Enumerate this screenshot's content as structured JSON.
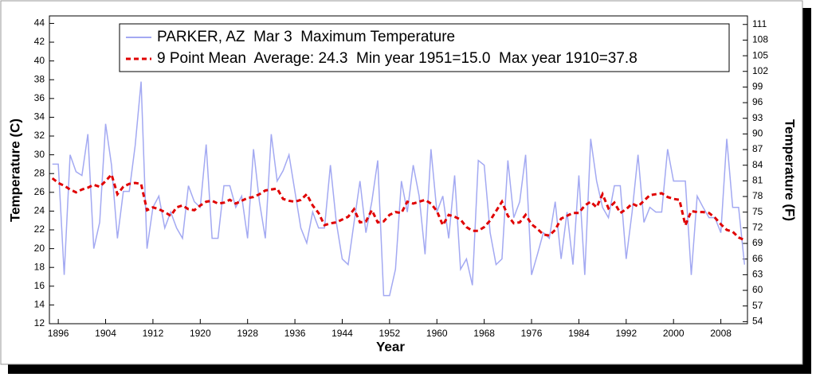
{
  "chart_data": {
    "type": "line",
    "legend": [
      "PARKER, AZ  Mar 3  Maximum Temperature",
      "9 Point Mean  Average: 24.3  Min year 1951=15.0  Max year 1910=37.8"
    ],
    "xlabel": "Year",
    "ylabel": "Temperature (C)",
    "y2label": "Temperature (F)",
    "xlim": [
      1894.5,
      2012.5
    ],
    "xticks": [
      1896,
      1904,
      1912,
      1920,
      1928,
      1936,
      1944,
      1952,
      1960,
      1968,
      1976,
      1984,
      1992,
      2000,
      2008
    ],
    "ylim": [
      12,
      44.8
    ],
    "yticks": [
      12,
      14,
      16,
      18,
      20,
      22,
      24,
      26,
      28,
      30,
      32,
      34,
      36,
      38,
      40,
      42,
      44
    ],
    "y2lim": [
      53.6,
      112.64
    ],
    "y2ticks": [
      54,
      57,
      60,
      63,
      66,
      69,
      72,
      75,
      78,
      81,
      84,
      87,
      90,
      93,
      96,
      99,
      102,
      105,
      108,
      111
    ],
    "x": [
      1895,
      1896,
      1897,
      1898,
      1899,
      1900,
      1901,
      1902,
      1903,
      1904,
      1905,
      1906,
      1907,
      1908,
      1909,
      1910,
      1911,
      1912,
      1913,
      1914,
      1915,
      1916,
      1917,
      1918,
      1919,
      1920,
      1921,
      1922,
      1923,
      1924,
      1925,
      1926,
      1927,
      1928,
      1929,
      1930,
      1931,
      1932,
      1933,
      1934,
      1935,
      1936,
      1937,
      1938,
      1939,
      1940,
      1941,
      1942,
      1943,
      1944,
      1945,
      1946,
      1947,
      1948,
      1949,
      1950,
      1951,
      1952,
      1953,
      1954,
      1955,
      1956,
      1957,
      1958,
      1959,
      1960,
      1961,
      1962,
      1963,
      1964,
      1965,
      1966,
      1967,
      1968,
      1969,
      1970,
      1971,
      1972,
      1973,
      1974,
      1975,
      1976,
      1977,
      1978,
      1979,
      1980,
      1981,
      1982,
      1983,
      1984,
      1985,
      1986,
      1987,
      1988,
      1989,
      1990,
      1991,
      1992,
      1993,
      1994,
      1995,
      1996,
      1997,
      1998,
      1999,
      2000,
      2001,
      2002,
      2003,
      2004,
      2005,
      2006,
      2007,
      2008,
      2009,
      2010,
      2011,
      2012
    ],
    "series": [
      {
        "name": "PARKER, AZ  Mar 3  Maximum Temperature",
        "color": "#a3a9f2",
        "dashed": false,
        "values": [
          29,
          29,
          17.2,
          30,
          28.2,
          27.8,
          32.2,
          20,
          22.8,
          33.3,
          28.9,
          21.1,
          26.1,
          26.1,
          31,
          37.8,
          20,
          24.4,
          25.6,
          22.2,
          23.9,
          22.2,
          21.1,
          26.7,
          25,
          24.4,
          31.1,
          21.1,
          21.1,
          26.7,
          26.7,
          24.4,
          25.6,
          21.1,
          30.6,
          25,
          21.1,
          32.2,
          27.2,
          28.3,
          30,
          26.1,
          22.2,
          20.6,
          23.9,
          22.2,
          22.2,
          28.9,
          22.8,
          18.9,
          18.3,
          22.8,
          27.2,
          21.7,
          25,
          29.4,
          15,
          15,
          17.8,
          27.2,
          23.9,
          28.9,
          25.6,
          19.4,
          30.6,
          23.9,
          25.6,
          21.1,
          27.8,
          17.8,
          18.9,
          16.1,
          29.4,
          28.9,
          21.7,
          18.3,
          18.9,
          29.4,
          23.3,
          25,
          30,
          17.2,
          19.4,
          21.7,
          21.1,
          25,
          18.9,
          23.9,
          18.3,
          27.8,
          17.2,
          31.7,
          27.2,
          24.4,
          23.3,
          26.7,
          26.7,
          18.9,
          23.9,
          30,
          22.8,
          24.4,
          23.9,
          23.9,
          30.6,
          27.2,
          27.2,
          27.2,
          17.2,
          25.6,
          24.4,
          23.3,
          23.3,
          21.7,
          31.7,
          24.4,
          24.4,
          18.3
        ]
      },
      {
        "name": "9 Point Mean  Average: 24.3  Min year 1951=15.0  Max year 1910=37.8",
        "color": "#e00000",
        "dashed": true,
        "values": [
          27.5,
          27,
          26.7,
          26.3,
          26,
          26.3,
          26.5,
          26.8,
          26.6,
          27.2,
          27.9,
          25.8,
          26.6,
          26.9,
          27,
          26.9,
          24.1,
          24.4,
          24.2,
          23.9,
          23.5,
          24.4,
          24.6,
          24.2,
          24.1,
          24.6,
          25,
          25.1,
          24.8,
          24.9,
          25.2,
          24.8,
          25.1,
          25.4,
          25.5,
          25.8,
          26.2,
          26.3,
          26.4,
          25.3,
          25.1,
          25,
          25.2,
          25.8,
          24.6,
          23.8,
          22.5,
          22.7,
          22.8,
          23.1,
          23.4,
          24.2,
          22.8,
          22.9,
          24.1,
          22.8,
          22.9,
          23.6,
          23.9,
          23.8,
          25,
          24.8,
          25,
          25.2,
          24.8,
          24,
          22.5,
          23.6,
          23.4,
          23.1,
          22.3,
          21.9,
          21.9,
          22.3,
          23,
          24,
          25,
          23.5,
          22.7,
          22.8,
          23.6,
          22.6,
          22.1,
          21.5,
          21.4,
          22,
          23.2,
          23.5,
          23.8,
          23.8,
          24.6,
          25,
          24.4,
          25.8,
          24.3,
          24.9,
          23.8,
          24.2,
          24.8,
          24.5,
          25.1,
          25.7,
          25.8,
          25.9,
          25.5,
          25.3,
          25.2,
          22.5,
          24,
          23.9,
          23.9,
          23.8,
          23.3,
          22.6,
          22,
          21.8,
          21.2,
          20.9
        ]
      }
    ]
  }
}
